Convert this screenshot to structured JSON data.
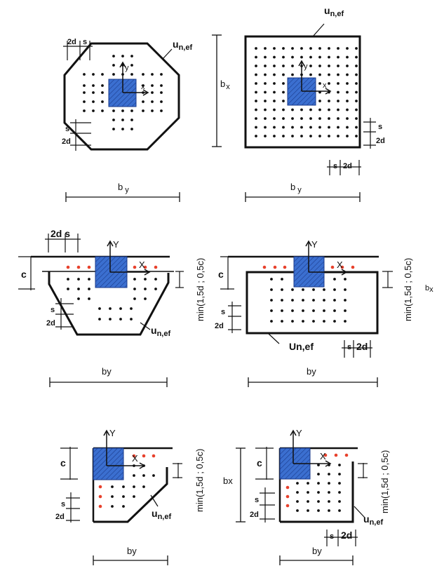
{
  "labels": {
    "u_perimeter": "u",
    "u_subscript": "n,ef",
    "u_caps": "Un,ef",
    "bx": "b",
    "bx_sub": "x",
    "bx_plain": "bx",
    "by": "b",
    "by_sub": "y",
    "by_plain": "by",
    "s": "s",
    "two_d": "2d",
    "two_d_s": "2d s",
    "c": "c",
    "min_label": "min(1,5d ; 0,5c)",
    "axis_x": "X",
    "axis_y": "Y",
    "axis_x_small": "x",
    "axis_y_small": "y"
  },
  "colors": {
    "column_fill": "#3b6fd0",
    "column_stroke": "#1a3a8a",
    "red_dot": "#e8412c",
    "black": "#111111"
  },
  "panels": [
    {
      "id": "interior-octagon",
      "column": "interior",
      "perimeter": "octagonal"
    },
    {
      "id": "interior-square",
      "column": "interior",
      "perimeter": "rectangular"
    },
    {
      "id": "edge-chamfered",
      "column": "edge",
      "perimeter": "chamfered"
    },
    {
      "id": "edge-rectangular",
      "column": "edge",
      "perimeter": "rectangular"
    },
    {
      "id": "corner-chamfered",
      "column": "corner",
      "perimeter": "chamfered"
    },
    {
      "id": "corner-rectangular",
      "column": "corner",
      "perimeter": "rectangular"
    }
  ]
}
